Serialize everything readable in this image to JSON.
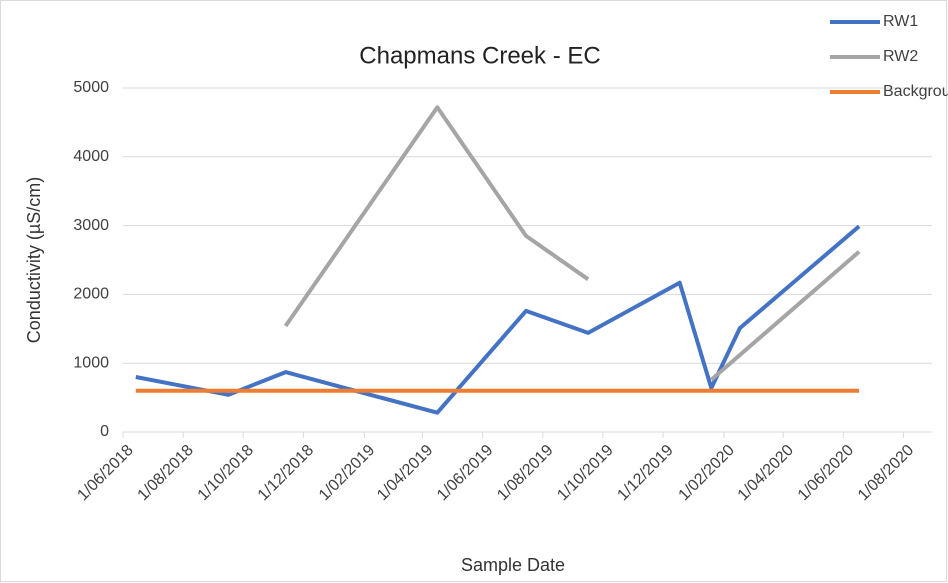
{
  "chart_data": {
    "type": "line",
    "title": "Chapmans Creek - EC",
    "xlabel": "Sample Date",
    "ylabel": "Conductivity (µS/cm)",
    "xlim": [
      "2018-06-01",
      "2020-08-30"
    ],
    "xticks": [
      {
        "value": "2018-06-01",
        "label": "1/06/2018"
      },
      {
        "value": "2018-08-01",
        "label": "1/08/2018"
      },
      {
        "value": "2018-10-01",
        "label": "1/10/2018"
      },
      {
        "value": "2018-12-01",
        "label": "1/12/2018"
      },
      {
        "value": "2019-02-01",
        "label": "1/02/2019"
      },
      {
        "value": "2019-04-01",
        "label": "1/04/2019"
      },
      {
        "value": "2019-06-01",
        "label": "1/06/2019"
      },
      {
        "value": "2019-08-01",
        "label": "1/08/2019"
      },
      {
        "value": "2019-10-01",
        "label": "1/10/2019"
      },
      {
        "value": "2019-12-01",
        "label": "1/12/2019"
      },
      {
        "value": "2020-02-01",
        "label": "1/02/2020"
      },
      {
        "value": "2020-04-01",
        "label": "1/04/2020"
      },
      {
        "value": "2020-06-01",
        "label": "1/06/2020"
      },
      {
        "value": "2020-08-01",
        "label": "1/08/2020"
      }
    ],
    "ylim": [
      0,
      5000
    ],
    "yticks": [
      0,
      1000,
      2000,
      3000,
      4000,
      5000
    ],
    "grid": true,
    "legend": "upper right",
    "series": [
      {
        "name": "RW1",
        "color": "#4472c4",
        "x": [
          "2018-06-14",
          "2018-09-16",
          "2018-11-13",
          "2019-04-16",
          "2019-07-15",
          "2019-09-16",
          "2019-12-18",
          "2020-01-19",
          "2020-02-17",
          "2020-06-17"
        ],
        "values": [
          800,
          540,
          870,
          280,
          1760,
          1440,
          2170,
          640,
          1510,
          2990
        ]
      },
      {
        "name": "RW2",
        "color": "#a5a5a5",
        "x": [
          "2018-11-13",
          "2019-04-16",
          "2019-07-15",
          "2019-09-16",
          "2019-12-18",
          "2020-01-19",
          "2020-06-17"
        ],
        "values": [
          1540,
          4720,
          2850,
          2220,
          null,
          760,
          2620
        ]
      },
      {
        "name": "Background",
        "color": "#ed7d31",
        "x": [
          "2018-06-14",
          "2020-06-17"
        ],
        "values": [
          600,
          600
        ]
      }
    ]
  }
}
